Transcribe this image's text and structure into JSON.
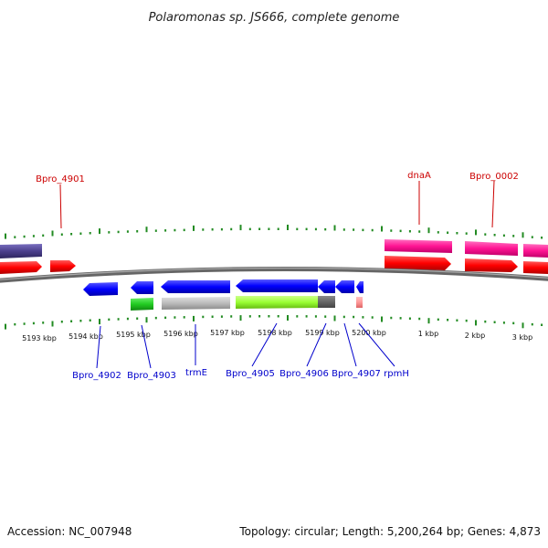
{
  "title": "Polaromonas sp. JS666, complete genome",
  "footer": {
    "accession": "Accession: NC_007948",
    "summary": "Topology: circular; Length: 5,200,264 bp; Genes: 4,873"
  },
  "colors": {
    "top_label": "#cc0000",
    "bottom_label": "#0000cc",
    "tick": "#228b22",
    "backbone": "#666666"
  },
  "top_labels": [
    {
      "id": "bpro-4901",
      "text": "Bpro_4901"
    },
    {
      "id": "dnaa",
      "text": "dnaA"
    },
    {
      "id": "bpro-0002",
      "text": "Bpro_0002"
    }
  ],
  "bottom_labels": [
    {
      "id": "bpro-4902",
      "text": "Bpro_4902"
    },
    {
      "id": "bpro-4903",
      "text": "Bpro_4903"
    },
    {
      "id": "trme",
      "text": "trmE"
    },
    {
      "id": "bpro-4905",
      "text": "Bpro_4905"
    },
    {
      "id": "bpro-4906",
      "text": "Bpro_4906"
    },
    {
      "id": "bpro-4907",
      "text": "Bpro_4907"
    },
    {
      "id": "rpmh",
      "text": "rpmH"
    }
  ],
  "scale_labels": [
    "5193 kbp",
    "5194 kbp",
    "5195 kbp",
    "5196 kbp",
    "5197 kbp",
    "5198 kbp",
    "5199 kbp",
    "5200 kbp",
    "1 kbp",
    "2 kbp",
    "3 kbp"
  ],
  "feature_tracks": [
    {
      "track": "forward-outer",
      "color": "#4b3f8c"
    },
    {
      "track": "forward-cds",
      "color": "#ff0000"
    },
    {
      "track": "forward-highlight",
      "color": "#ff1493"
    },
    {
      "track": "reverse-cds",
      "color": "#0000ff"
    },
    {
      "track": "reverse-rna",
      "color": "#22cc22"
    },
    {
      "track": "reverse-gray",
      "color": "#bbbbbb"
    },
    {
      "track": "reverse-lime",
      "color": "#99ff33"
    },
    {
      "track": "reverse-dark",
      "color": "#666666"
    },
    {
      "track": "reverse-pink",
      "color": "#ff9999"
    }
  ]
}
